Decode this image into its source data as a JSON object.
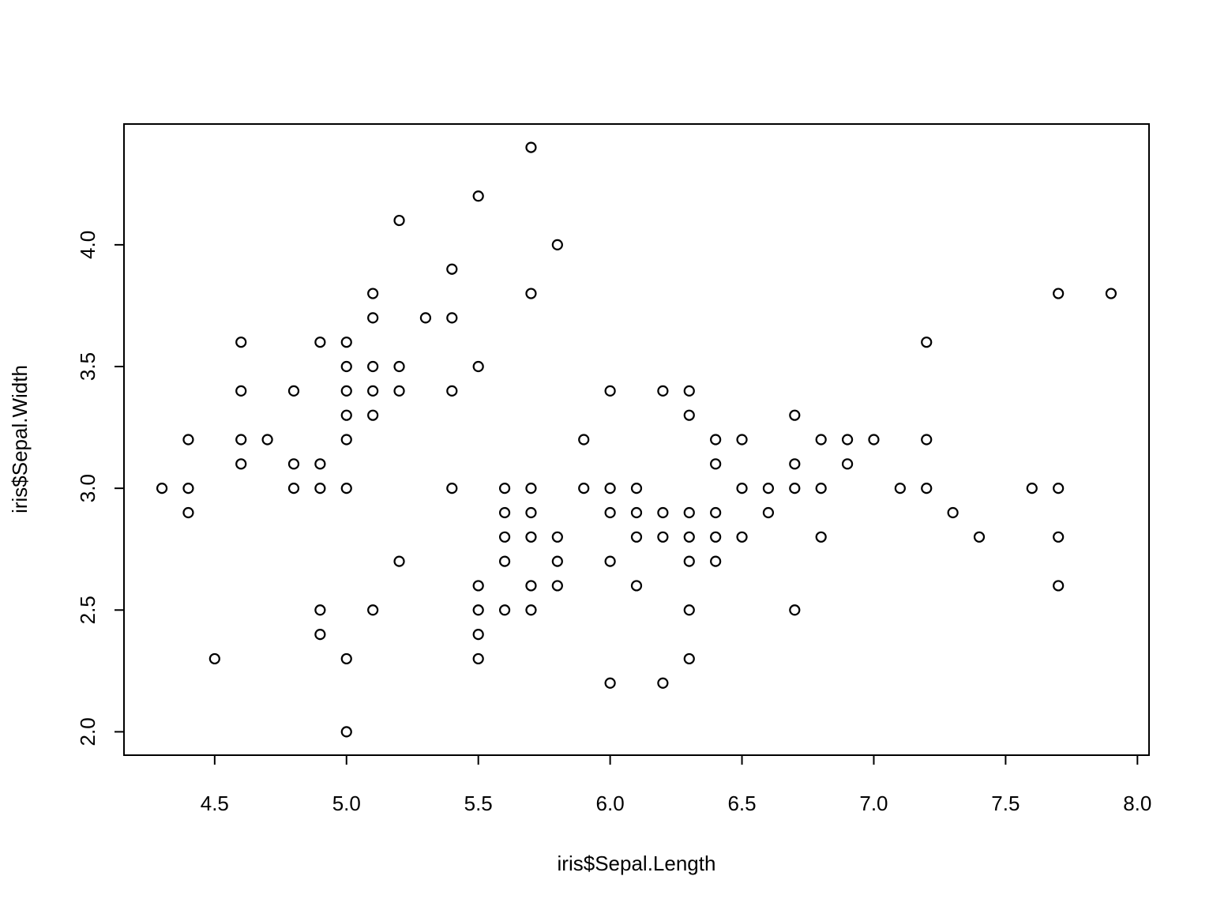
{
  "chart_data": {
    "type": "scatter",
    "x_label": "iris$Sepal.Length",
    "y_label": "iris$Sepal.Width",
    "x": [
      4.3,
      4.4,
      4.4,
      4.4,
      4.5,
      4.6,
      4.6,
      4.6,
      4.6,
      4.7,
      4.8,
      4.8,
      4.8,
      4.9,
      4.9,
      4.9,
      4.9,
      4.9,
      5.0,
      5.0,
      5.0,
      5.0,
      5.0,
      5.0,
      5.0,
      5.0,
      5.1,
      5.1,
      5.1,
      5.1,
      5.1,
      5.1,
      5.2,
      5.2,
      5.2,
      5.2,
      5.3,
      5.4,
      5.4,
      5.4,
      5.4,
      5.5,
      5.5,
      5.5,
      5.5,
      5.5,
      5.5,
      5.6,
      5.6,
      5.6,
      5.6,
      5.6,
      5.7,
      5.7,
      5.7,
      5.7,
      5.7,
      5.7,
      5.7,
      5.8,
      5.8,
      5.8,
      5.8,
      5.9,
      5.9,
      6.0,
      6.0,
      6.0,
      6.0,
      6.0,
      6.1,
      6.1,
      6.1,
      6.1,
      6.2,
      6.2,
      6.2,
      6.2,
      6.3,
      6.3,
      6.3,
      6.3,
      6.3,
      6.3,
      6.3,
      6.4,
      6.4,
      6.4,
      6.4,
      6.4,
      6.5,
      6.5,
      6.5,
      6.6,
      6.6,
      6.7,
      6.7,
      6.7,
      6.7,
      6.8,
      6.8,
      6.8,
      6.9,
      6.9,
      7.0,
      7.1,
      7.2,
      7.2,
      7.2,
      7.3,
      7.4,
      7.6,
      7.7,
      7.7,
      7.7,
      7.7,
      7.9
    ],
    "y": [
      3.0,
      3.2,
      3.0,
      2.9,
      2.3,
      3.6,
      3.4,
      3.2,
      3.1,
      3.2,
      3.4,
      3.1,
      3.0,
      3.6,
      3.1,
      3.0,
      2.5,
      2.4,
      3.6,
      3.5,
      3.4,
      3.3,
      3.2,
      3.0,
      2.3,
      2.0,
      3.8,
      3.7,
      3.5,
      3.4,
      3.3,
      2.5,
      4.1,
      3.5,
      3.4,
      2.7,
      3.7,
      3.9,
      3.7,
      3.4,
      3.0,
      4.2,
      3.5,
      2.6,
      2.5,
      2.4,
      2.3,
      3.0,
      2.9,
      2.8,
      2.7,
      2.5,
      4.4,
      3.8,
      3.0,
      2.9,
      2.8,
      2.6,
      2.5,
      4.0,
      2.8,
      2.7,
      2.6,
      3.2,
      3.0,
      3.4,
      3.0,
      2.9,
      2.7,
      2.2,
      3.0,
      2.9,
      2.8,
      2.6,
      3.4,
      2.9,
      2.8,
      2.2,
      3.4,
      3.3,
      2.9,
      2.8,
      2.7,
      2.5,
      2.3,
      3.2,
      3.1,
      2.9,
      2.8,
      2.7,
      3.2,
      3.0,
      2.8,
      3.0,
      2.9,
      3.3,
      3.1,
      3.0,
      2.5,
      3.2,
      3.0,
      2.8,
      3.2,
      3.1,
      3.2,
      3.0,
      3.6,
      3.2,
      3.0,
      2.9,
      2.8,
      3.0,
      3.8,
      3.0,
      2.8,
      2.6,
      3.8
    ],
    "xlim": [
      4.156,
      8.044
    ],
    "ylim": [
      1.904,
      4.496
    ],
    "xticks": [
      4.5,
      {
        "value": 5,
        "label": "5.0"
      },
      5.5,
      {
        "value": 6,
        "label": "6.0"
      },
      6.5,
      {
        "value": 7,
        "label": "7.0"
      },
      7.5,
      {
        "value": 8,
        "label": "8.0"
      }
    ],
    "yticks": [
      {
        "value": 2,
        "label": "2.0"
      },
      2.5,
      {
        "value": 3,
        "label": "3.0"
      },
      3.5,
      {
        "value": 4,
        "label": "4.0"
      }
    ],
    "color": "#000000"
  }
}
